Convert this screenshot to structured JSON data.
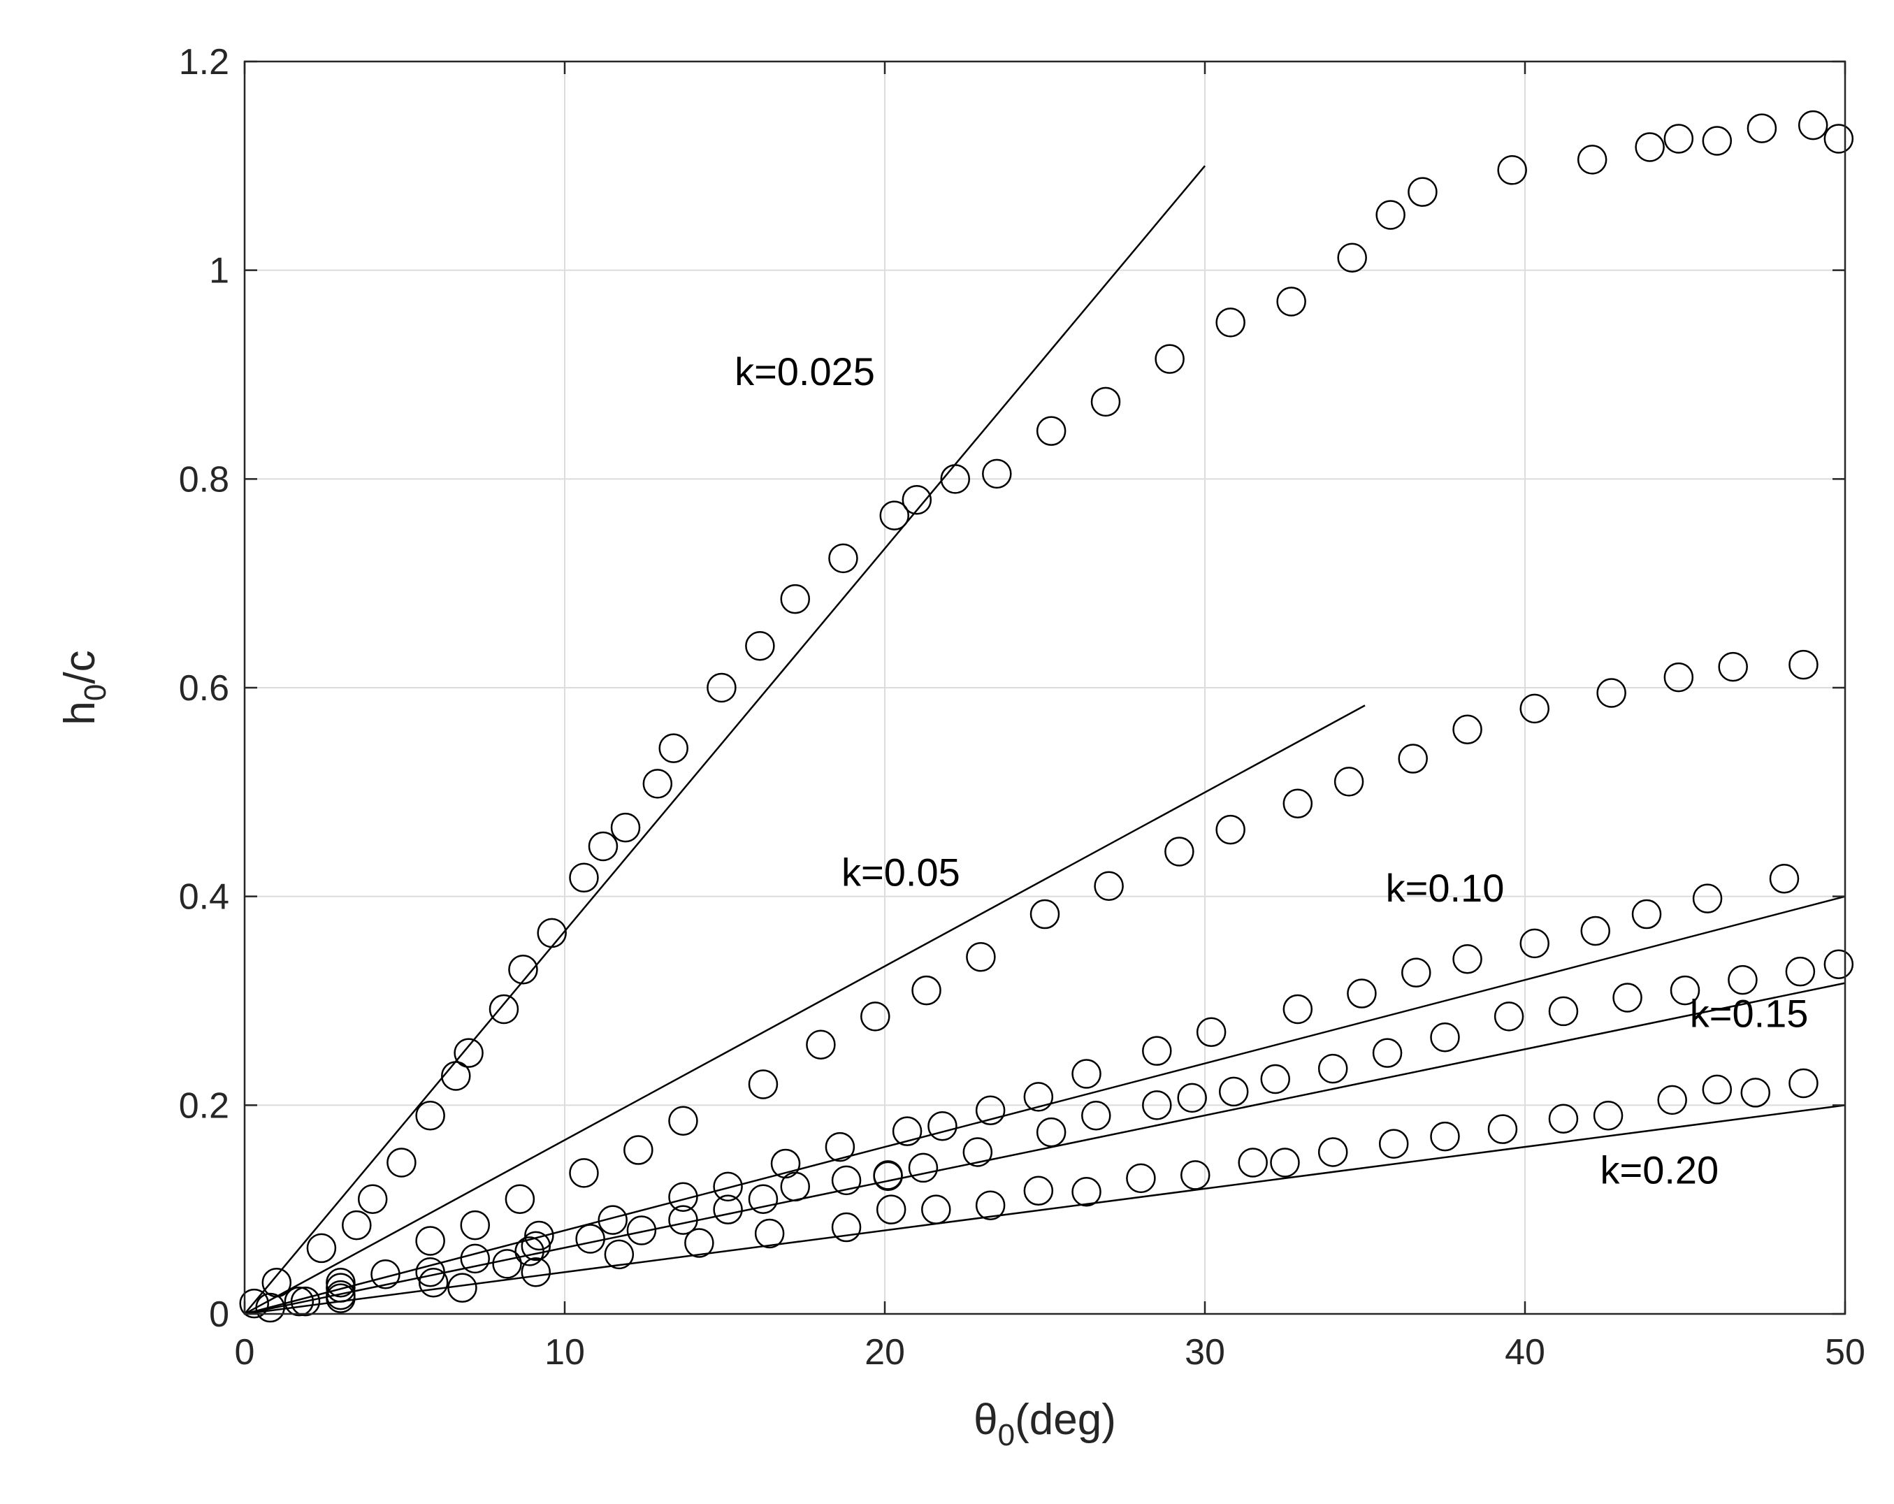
{
  "chart_data": {
    "type": "scatter",
    "title": "",
    "xlabel": {
      "main": "θ",
      "sub": "0",
      "suffix": "(deg)"
    },
    "ylabel": {
      "main": "h",
      "sub": "0",
      "suffix": "/c"
    },
    "xlim": [
      0,
      50
    ],
    "ylim": [
      0,
      1.2
    ],
    "xticks": [
      0,
      10,
      20,
      30,
      40,
      50
    ],
    "yticks": [
      0,
      0.2,
      0.4,
      0.6,
      0.8,
      1,
      1.2
    ],
    "xtick_labels": [
      "0",
      "10",
      "20",
      "30",
      "40",
      "50"
    ],
    "ytick_labels": [
      "0",
      "0.2",
      "0.4",
      "0.6",
      "0.8",
      "1",
      "1.2"
    ],
    "grid": true,
    "marker": "open-circle",
    "series": [
      {
        "name": "k=0.025",
        "label_at": [
          17.5,
          0.89
        ],
        "fit_line": {
          "x": [
            0,
            30
          ],
          "y": [
            0,
            1.1
          ]
        },
        "points": [
          [
            0.3,
            0.01
          ],
          [
            1.0,
            0.03
          ],
          [
            2.4,
            0.063
          ],
          [
            3.5,
            0.085
          ],
          [
            4.0,
            0.11
          ],
          [
            4.9,
            0.145
          ],
          [
            5.8,
            0.19
          ],
          [
            6.6,
            0.228
          ],
          [
            7.0,
            0.25
          ],
          [
            8.1,
            0.292
          ],
          [
            8.7,
            0.33
          ],
          [
            9.6,
            0.365
          ],
          [
            10.6,
            0.418
          ],
          [
            11.2,
            0.448
          ],
          [
            11.9,
            0.466
          ],
          [
            12.9,
            0.508
          ],
          [
            13.4,
            0.542
          ],
          [
            14.9,
            0.6
          ],
          [
            16.1,
            0.64
          ],
          [
            17.2,
            0.685
          ],
          [
            18.7,
            0.724
          ],
          [
            20.3,
            0.765
          ],
          [
            21.0,
            0.78
          ],
          [
            22.2,
            0.8
          ],
          [
            23.5,
            0.805
          ],
          [
            25.2,
            0.846
          ],
          [
            26.9,
            0.874
          ],
          [
            28.9,
            0.915
          ],
          [
            30.8,
            0.95
          ],
          [
            32.7,
            0.97
          ],
          [
            34.6,
            1.012
          ],
          [
            35.8,
            1.053
          ],
          [
            36.8,
            1.075
          ],
          [
            39.6,
            1.096
          ],
          [
            42.1,
            1.106
          ],
          [
            43.9,
            1.118
          ],
          [
            44.8,
            1.126
          ],
          [
            46.0,
            1.124
          ],
          [
            47.4,
            1.136
          ],
          [
            49.0,
            1.139
          ],
          [
            49.8,
            1.126
          ]
        ]
      },
      {
        "name": "k=0.05",
        "label_at": [
          20.5,
          0.41
        ],
        "fit_line": {
          "x": [
            0,
            35
          ],
          "y": [
            0,
            0.583
          ]
        },
        "points": [
          [
            0.8,
            0.006
          ],
          [
            1.9,
            0.012
          ],
          [
            3.0,
            0.025
          ],
          [
            4.4,
            0.038
          ],
          [
            5.8,
            0.07
          ],
          [
            7.2,
            0.085
          ],
          [
            8.6,
            0.11
          ],
          [
            10.6,
            0.135
          ],
          [
            12.3,
            0.157
          ],
          [
            13.7,
            0.185
          ],
          [
            16.2,
            0.22
          ],
          [
            18.0,
            0.258
          ],
          [
            19.7,
            0.285
          ],
          [
            21.3,
            0.31
          ],
          [
            23.0,
            0.342
          ],
          [
            25.0,
            0.383
          ],
          [
            27.0,
            0.41
          ],
          [
            29.2,
            0.443
          ],
          [
            30.8,
            0.464
          ],
          [
            32.9,
            0.489
          ],
          [
            34.5,
            0.51
          ],
          [
            36.5,
            0.532
          ],
          [
            38.2,
            0.56
          ],
          [
            40.3,
            0.58
          ],
          [
            42.7,
            0.595
          ],
          [
            44.8,
            0.61
          ],
          [
            46.5,
            0.62
          ],
          [
            48.7,
            0.622
          ]
        ]
      },
      {
        "name": "k=0.10",
        "label_at": [
          37.5,
          0.395
        ],
        "fit_line": {
          "x": [
            0,
            50
          ],
          "y": [
            0,
            0.4
          ]
        },
        "points": [
          [
            3.0,
            0.03
          ],
          [
            5.8,
            0.04
          ],
          [
            7.2,
            0.053
          ],
          [
            8.9,
            0.06
          ],
          [
            9.2,
            0.075
          ],
          [
            11.5,
            0.09
          ],
          [
            13.7,
            0.112
          ],
          [
            15.1,
            0.122
          ],
          [
            16.9,
            0.144
          ],
          [
            18.6,
            0.16
          ],
          [
            20.1,
            0.133
          ],
          [
            20.7,
            0.175
          ],
          [
            21.8,
            0.18
          ],
          [
            23.3,
            0.195
          ],
          [
            24.8,
            0.208
          ],
          [
            26.3,
            0.23
          ],
          [
            28.5,
            0.252
          ],
          [
            30.2,
            0.27
          ],
          [
            32.9,
            0.292
          ],
          [
            34.9,
            0.307
          ],
          [
            36.6,
            0.327
          ],
          [
            38.2,
            0.34
          ],
          [
            40.3,
            0.355
          ],
          [
            42.2,
            0.367
          ],
          [
            43.8,
            0.383
          ],
          [
            45.7,
            0.398
          ],
          [
            48.1,
            0.417
          ]
        ]
      },
      {
        "name": "k=0.15",
        "label_at": [
          47.0,
          0.275
        ],
        "fit_line": {
          "x": [
            0,
            50
          ],
          "y": [
            0,
            0.317
          ]
        },
        "points": [
          [
            3.0,
            0.018
          ],
          [
            5.9,
            0.03
          ],
          [
            8.2,
            0.048
          ],
          [
            9.1,
            0.065
          ],
          [
            10.8,
            0.072
          ],
          [
            12.4,
            0.08
          ],
          [
            13.7,
            0.09
          ],
          [
            15.1,
            0.1
          ],
          [
            16.2,
            0.11
          ],
          [
            17.2,
            0.122
          ],
          [
            18.8,
            0.128
          ],
          [
            20.1,
            0.132
          ],
          [
            21.2,
            0.14
          ],
          [
            22.9,
            0.155
          ],
          [
            25.2,
            0.174
          ],
          [
            26.6,
            0.19
          ],
          [
            28.5,
            0.2
          ],
          [
            29.6,
            0.207
          ],
          [
            30.9,
            0.213
          ],
          [
            32.2,
            0.225
          ],
          [
            34.0,
            0.235
          ],
          [
            35.7,
            0.25
          ],
          [
            37.5,
            0.265
          ],
          [
            39.5,
            0.285
          ],
          [
            41.2,
            0.29
          ],
          [
            43.2,
            0.303
          ],
          [
            45.0,
            0.31
          ],
          [
            46.8,
            0.32
          ],
          [
            48.6,
            0.328
          ],
          [
            49.8,
            0.335
          ]
        ]
      },
      {
        "name": "k=0.20",
        "label_at": [
          44.2,
          0.125
        ],
        "fit_line": {
          "x": [
            0,
            50
          ],
          "y": [
            0,
            0.2
          ]
        },
        "points": [
          [
            1.7,
            0.012
          ],
          [
            3.0,
            0.015
          ],
          [
            6.8,
            0.025
          ],
          [
            9.1,
            0.04
          ],
          [
            11.7,
            0.057
          ],
          [
            14.2,
            0.068
          ],
          [
            16.4,
            0.077
          ],
          [
            18.8,
            0.083
          ],
          [
            20.2,
            0.1
          ],
          [
            21.6,
            0.1
          ],
          [
            23.3,
            0.104
          ],
          [
            24.8,
            0.118
          ],
          [
            26.3,
            0.117
          ],
          [
            28.0,
            0.13
          ],
          [
            29.7,
            0.133
          ],
          [
            31.5,
            0.145
          ],
          [
            32.5,
            0.145
          ],
          [
            34.0,
            0.155
          ],
          [
            35.9,
            0.163
          ],
          [
            37.5,
            0.17
          ],
          [
            39.3,
            0.177
          ],
          [
            41.2,
            0.187
          ],
          [
            42.6,
            0.19
          ],
          [
            44.6,
            0.205
          ],
          [
            46.0,
            0.215
          ],
          [
            47.2,
            0.212
          ],
          [
            48.7,
            0.221
          ]
        ]
      }
    ]
  }
}
